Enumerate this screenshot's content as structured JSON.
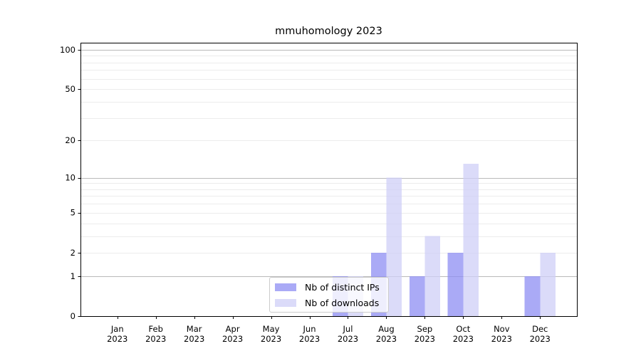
{
  "page": {
    "background": "#ffffff"
  },
  "chart_data": {
    "type": "bar",
    "title": "mmuhomology 2023",
    "categories": [
      "Jan 2023",
      "Feb 2023",
      "Mar 2023",
      "Apr 2023",
      "May 2023",
      "Jun 2023",
      "Jul 2023",
      "Aug 2023",
      "Sep 2023",
      "Oct 2023",
      "Nov 2023",
      "Dec 2023"
    ],
    "series": [
      {
        "name": "Nb of distinct IPs",
        "color": "#8e8ef3",
        "values": [
          0,
          0,
          0,
          0,
          0,
          0,
          1,
          2,
          1,
          2,
          0,
          1
        ]
      },
      {
        "name": "Nb of downloads",
        "color": "#cfcff7",
        "values": [
          0,
          0,
          0,
          0,
          0,
          0,
          1,
          10,
          3,
          13,
          0,
          2
        ]
      }
    ],
    "xlabel": "",
    "ylabel": "",
    "yscale": "log1p",
    "ylim": [
      0,
      113
    ],
    "yticks": [
      0,
      1,
      2,
      5,
      10,
      20,
      50,
      100
    ],
    "grid": "horizontal",
    "major_grid_values": [
      1,
      10,
      100
    ],
    "minor_grid_values": [
      2,
      3,
      4,
      5,
      6,
      7,
      8,
      9,
      20,
      30,
      40,
      50,
      60,
      70,
      80,
      90
    ],
    "major_grid_color": "#b9b9b9",
    "minor_grid_color": "#ececec",
    "axis_color": "#000000",
    "text_color": "#000000",
    "bar_opacity": 0.75,
    "legend_position": "inside-lower-center"
  }
}
